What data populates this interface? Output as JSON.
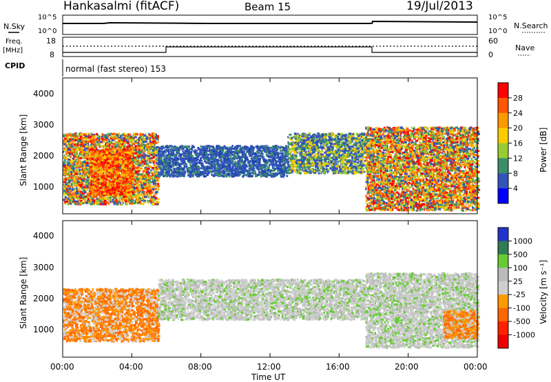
{
  "header": {
    "radar": "Hankasalmi (fitACF)",
    "beam": "Beam 15",
    "date": "19/Jul/2013"
  },
  "noise_panel": {
    "left_label": "N.Sky",
    "right_label": "N.Search",
    "left_ticks": [
      "10^5",
      "10^0"
    ],
    "right_ticks": [
      "10^5",
      "10^0"
    ]
  },
  "freq_panel": {
    "left_label_line1": "Freq.",
    "left_label_line2": "[MHz]",
    "right_label": "Nave",
    "left_ticks": [
      "18",
      "8"
    ],
    "right_ticks": [
      "60",
      "0"
    ]
  },
  "cpid_panel": {
    "label": "CPID",
    "text": "normal (fast stereo) 153"
  },
  "power_panel": {
    "ylabel": "Slant Range [km]",
    "yticks": [
      "4000",
      "3000",
      "2000",
      "1000"
    ],
    "colorbar_label": "Power [dB]",
    "colorbar_ticks": [
      "28",
      "24",
      "20",
      "16",
      "12",
      "8",
      "4"
    ],
    "colorbar_colors": [
      "#ff0000",
      "#ff5500",
      "#ff9900",
      "#ffcc00",
      "#99cc33",
      "#3a8f6a",
      "#3355bb",
      "#0000ff"
    ]
  },
  "velocity_panel": {
    "ylabel": "Slant Range [km]",
    "yticks": [
      "4000",
      "3000",
      "2000",
      "1000"
    ],
    "colorbar_label": "Velocity [m s⁻¹]",
    "colorbar_ticks": [
      "1000",
      "500",
      "100",
      "25",
      "-25",
      "-100",
      "-500",
      "-1000"
    ],
    "colorbar_colors": [
      "#2233cc",
      "#2f7c55",
      "#66cc33",
      "#bbbbbb",
      "#cfcfcf",
      "#ff9900",
      "#ff6600",
      "#ff2200",
      "#ee0000"
    ]
  },
  "xaxis": {
    "label": "Time UT",
    "ticks": [
      "00:00",
      "04:00",
      "08:00",
      "12:00",
      "16:00",
      "20:00",
      "00:00"
    ]
  },
  "chart_data": {
    "type": "heatmap",
    "title": "Hankasalmi (fitACF) Beam 15 19/Jul/2013",
    "xlabel": "Time UT",
    "ylabel": "Slant Range [km]",
    "xlim": [
      0,
      24
    ],
    "ylim": [
      200,
      4600
    ],
    "power_regions": [
      {
        "t0": 0.0,
        "t1": 5.5,
        "r0": 500,
        "r1": 2800,
        "level": "mixed-high"
      },
      {
        "t0": 1.5,
        "t1": 4.0,
        "r0": 800,
        "r1": 2300,
        "level": "high"
      },
      {
        "t0": 5.5,
        "t1": 13.0,
        "r0": 1400,
        "r1": 2400,
        "level": "low"
      },
      {
        "t0": 13.0,
        "t1": 17.5,
        "r0": 1500,
        "r1": 2800,
        "level": "medium"
      },
      {
        "t0": 17.5,
        "t1": 24.0,
        "r0": 300,
        "r1": 3000,
        "level": "mixed-high"
      }
    ],
    "velocity_regions": [
      {
        "t0": 0.0,
        "t1": 5.5,
        "r0": 700,
        "r1": 2400,
        "velocity": "-500"
      },
      {
        "t0": 5.5,
        "t1": 17.5,
        "r0": 1400,
        "r1": 2700,
        "velocity": "-25"
      },
      {
        "t0": 17.5,
        "t1": 24.0,
        "r0": 500,
        "r1": 2900,
        "velocity": "-25"
      },
      {
        "t0": 22.0,
        "t1": 24.0,
        "r0": 800,
        "r1": 1700,
        "velocity": "-500"
      }
    ]
  }
}
